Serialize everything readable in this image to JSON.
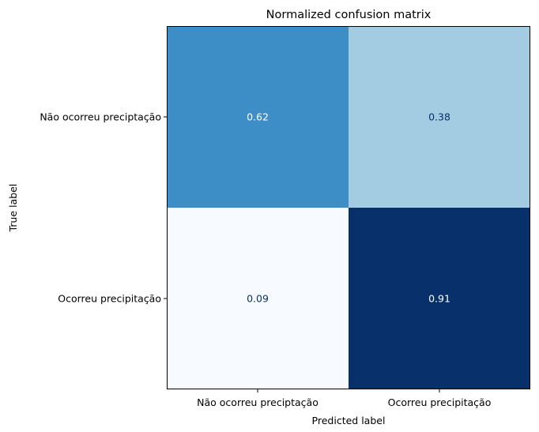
{
  "chart_data": {
    "type": "heatmap",
    "title": "Normalized confusion matrix",
    "xlabel": "Predicted label",
    "ylabel": "True label",
    "x_categories": [
      "Não ocorreu preciptação",
      "Ocorreu precipitação"
    ],
    "y_categories": [
      "Não ocorreu preciptação",
      "Ocorreu precipitação"
    ],
    "values": [
      [
        0.62,
        0.38
      ],
      [
        0.09,
        0.91
      ]
    ],
    "value_labels": [
      [
        "0.62",
        "0.38"
      ],
      [
        "0.09",
        "0.91"
      ]
    ],
    "colormap": "Blues",
    "colorbar": false,
    "grid": false,
    "cell_colors": [
      [
        "#3d8dc6",
        "#a3cbe2"
      ],
      [
        "#f7fbff",
        "#08306b"
      ]
    ],
    "text_colors": {
      "dark": "#08306b",
      "light": "#ffffff"
    }
  }
}
